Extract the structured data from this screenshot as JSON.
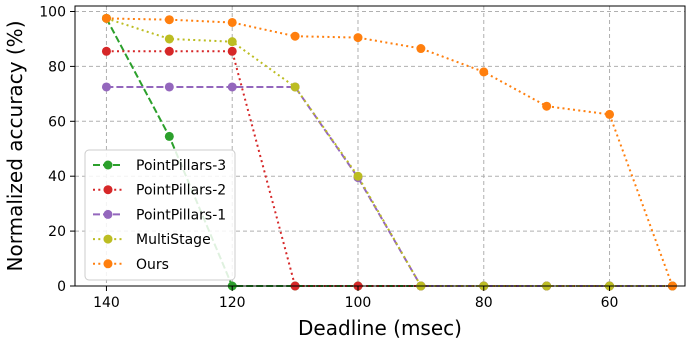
{
  "chart_data": {
    "type": "line",
    "xlabel": "Deadline (msec)",
    "ylabel": "Normalized accuracy (%)",
    "x_inverted": true,
    "xlim": [
      145,
      48
    ],
    "ylim": [
      0,
      102
    ],
    "xticks": [
      140,
      120,
      100,
      80,
      60
    ],
    "yticks": [
      0,
      20,
      40,
      60,
      80,
      100
    ],
    "grid": true,
    "legend_position": "lower-left",
    "series": [
      {
        "name": "PointPillars-3",
        "color": "#2ca02c",
        "linestyle": "dashed",
        "x": [
          140,
          130,
          120,
          110,
          100,
          90,
          80,
          70,
          60,
          50
        ],
        "y": [
          97.5,
          54.5,
          0,
          0,
          0,
          0,
          0,
          0,
          0,
          0
        ]
      },
      {
        "name": "PointPillars-2",
        "color": "#d62728",
        "linestyle": "dotted",
        "x": [
          140,
          130,
          120,
          110,
          100,
          90,
          80,
          70,
          60,
          50
        ],
        "y": [
          85.5,
          85.5,
          85.5,
          0,
          0,
          0,
          0,
          0,
          0,
          0
        ]
      },
      {
        "name": "PointPillars-1",
        "color": "#9467bd",
        "linestyle": "dashed",
        "x": [
          140,
          130,
          120,
          110,
          100,
          90,
          80,
          70,
          60,
          50
        ],
        "y": [
          72.5,
          72.5,
          72.5,
          72.5,
          39.5,
          0,
          0,
          0,
          0,
          0
        ]
      },
      {
        "name": "MultiStage",
        "color": "#bcbd22",
        "linestyle": "dotted",
        "x": [
          140,
          130,
          120,
          110,
          100,
          90,
          80,
          70,
          60,
          50
        ],
        "y": [
          97.5,
          90,
          89,
          72.5,
          40,
          0,
          0,
          0,
          0,
          0
        ]
      },
      {
        "name": "Ours",
        "color": "#ff7f0e",
        "linestyle": "dotted",
        "x": [
          140,
          130,
          120,
          110,
          100,
          90,
          80,
          70,
          60,
          50
        ],
        "y": [
          97.5,
          97,
          96,
          91,
          90.5,
          86.5,
          78,
          65.5,
          62.5,
          0
        ]
      }
    ]
  }
}
